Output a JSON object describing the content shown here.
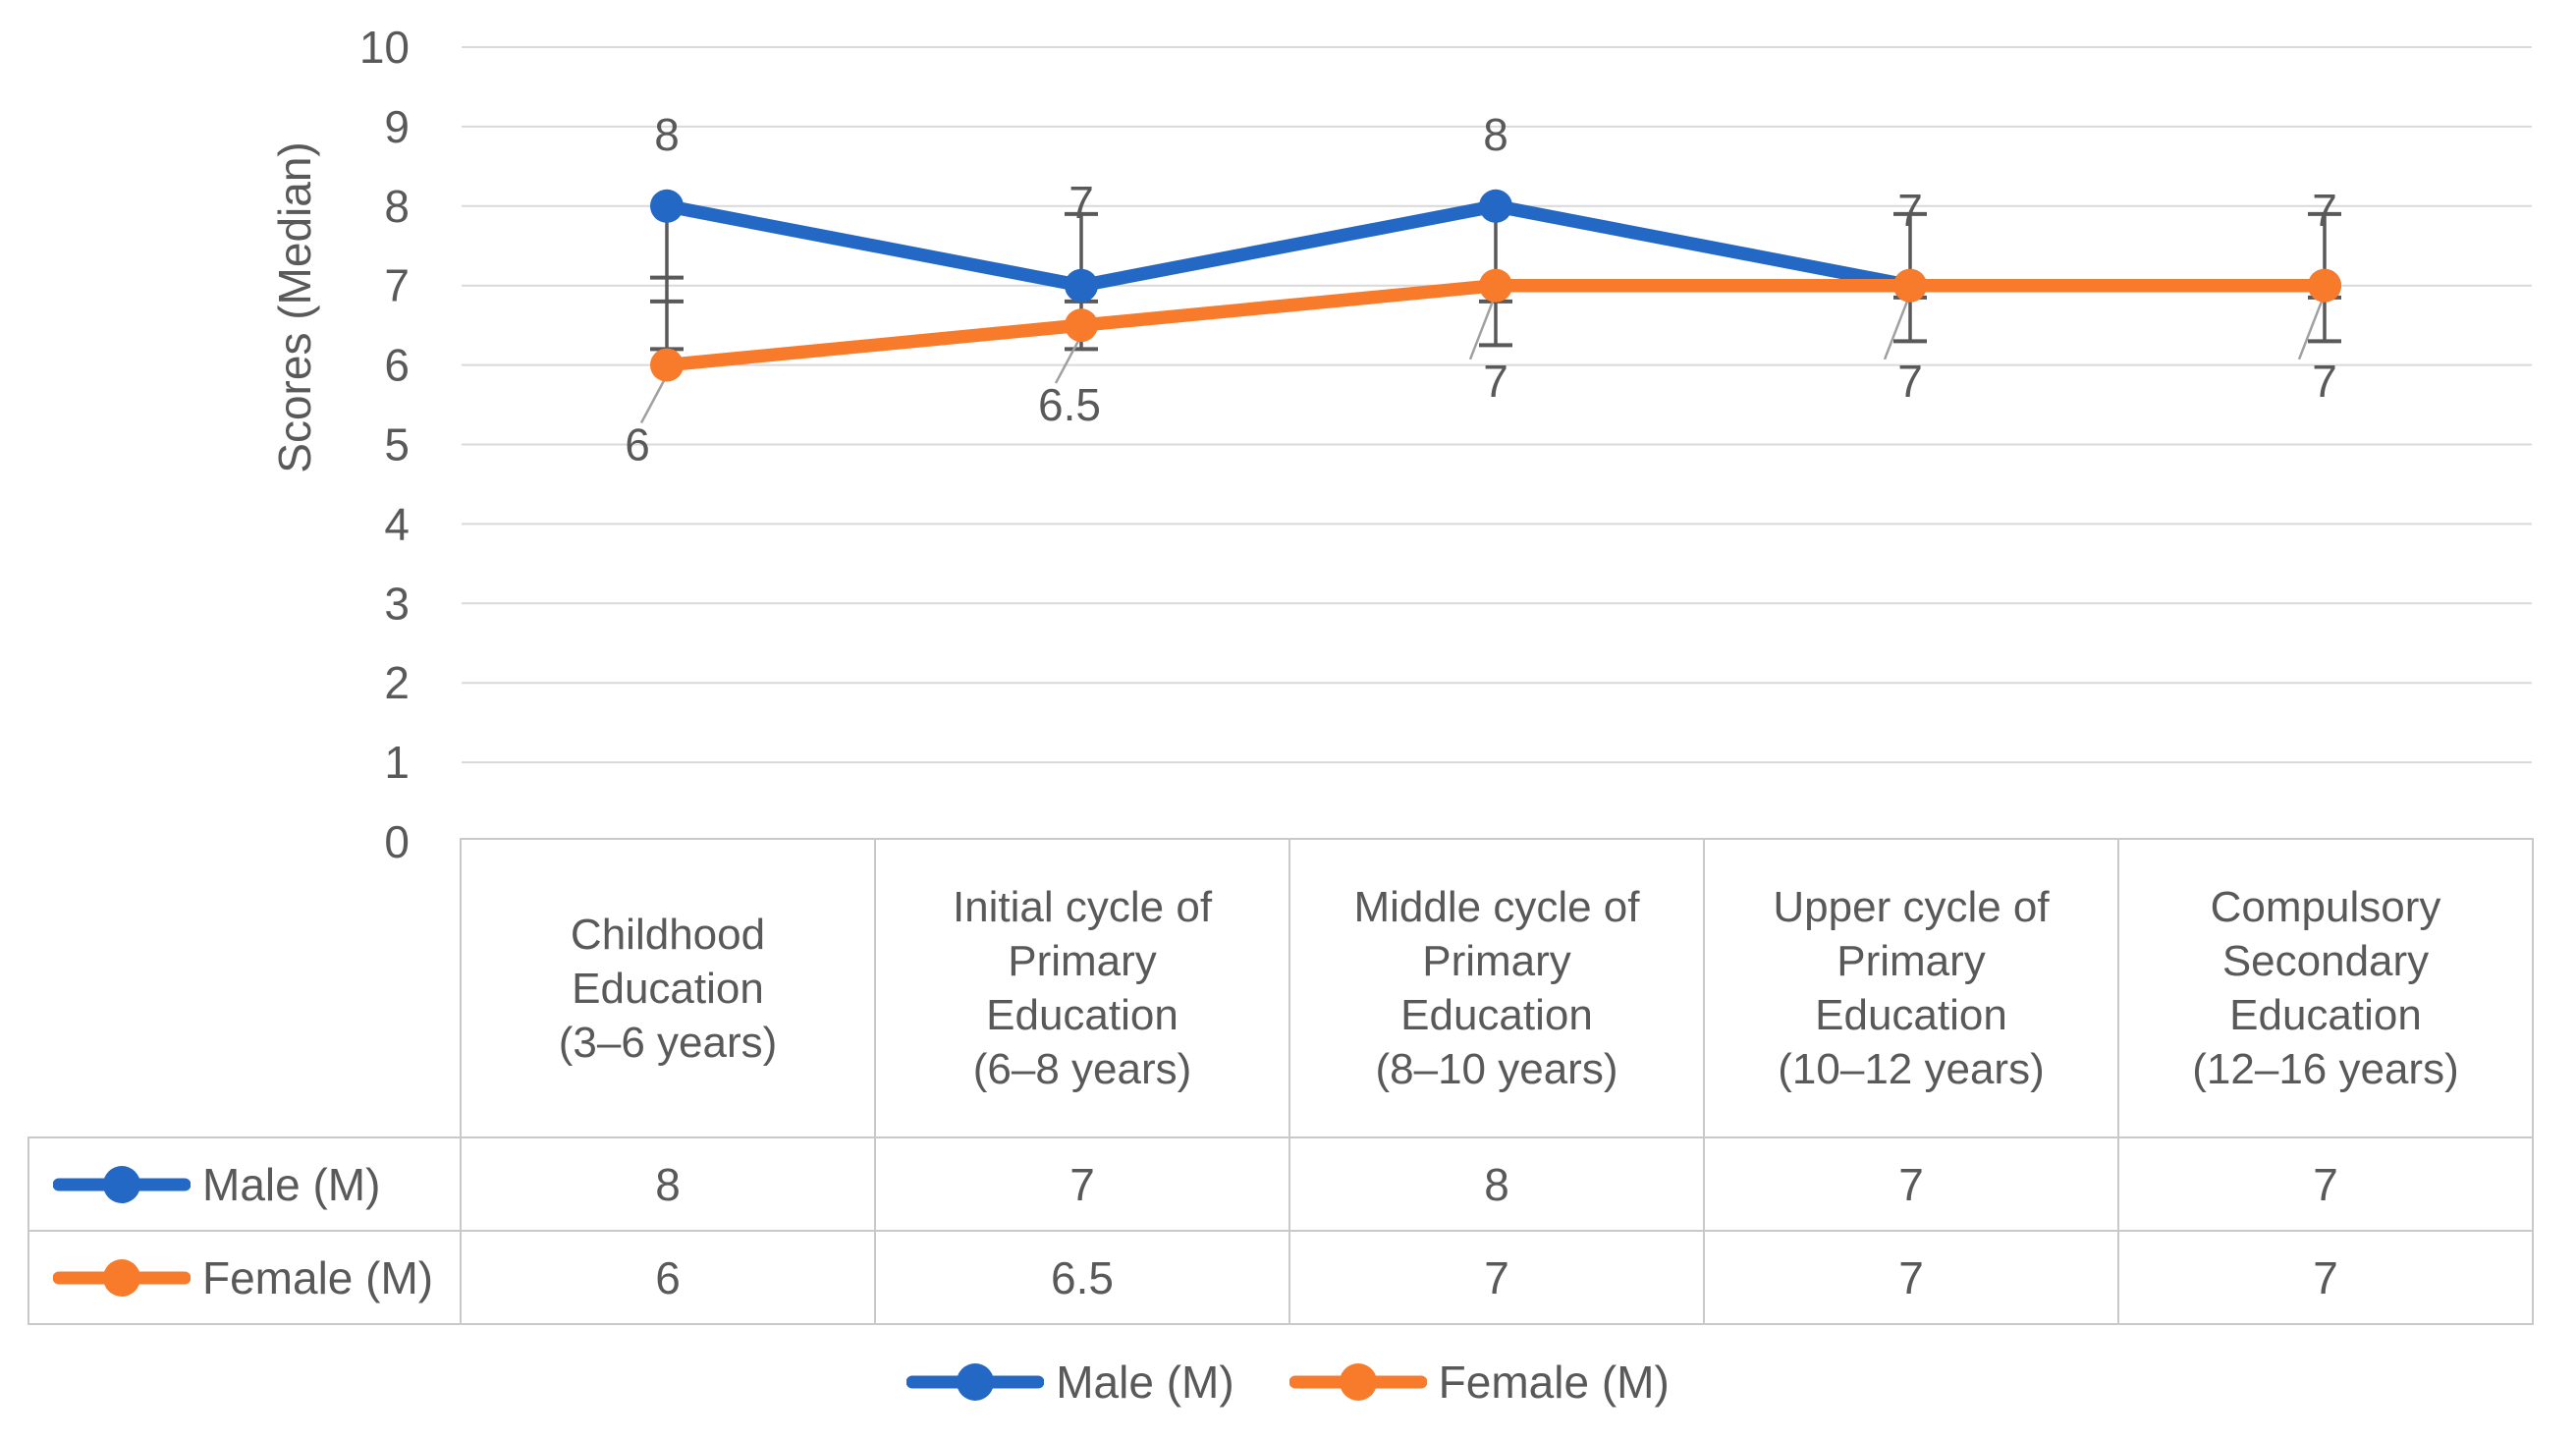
{
  "figure": {
    "background": "#ffffff"
  },
  "chart_data": {
    "type": "line",
    "title": "",
    "xlabel": "",
    "ylabel": "Scores (Median)",
    "ylim": [
      0,
      10
    ],
    "yticks": [
      0,
      1,
      2,
      3,
      4,
      5,
      6,
      7,
      8,
      9,
      10
    ],
    "grid": true,
    "legend_position": "bottom",
    "categories": [
      "Childhood Education (3–6 years)",
      "Initial cycle of Primary Education (6–8 years)",
      "Middle cycle of Primary Education (8–10 years)",
      "Upper cycle of Primary Education (10–12 years)",
      "Compulsory Secondary Education (12–16 years)"
    ],
    "categories_wrapped": [
      "Childhood\nEducation\n(3–6 years)",
      "Initial cycle of\nPrimary\nEducation\n(6–8 years)",
      "Middle cycle of\nPrimary\nEducation\n(8–10 years)",
      "Upper cycle of\nPrimary\nEducation\n(10–12 years)",
      "Compulsory\nSecondary\nEducation\n(12–16 years)"
    ],
    "series": [
      {
        "name": "Male (M)",
        "color": "#2368C4",
        "values": [
          8,
          7,
          8,
          7,
          7
        ],
        "data_labels": [
          "8",
          "7",
          "8",
          "7",
          "7"
        ],
        "data_label_y": [
          8.9,
          8.05,
          8.9,
          7.95,
          7.95
        ]
      },
      {
        "name": "Female (M)",
        "color": "#F87B2C",
        "values": [
          6,
          6.5,
          7,
          7,
          7
        ],
        "data_labels": [
          "6",
          "6.5",
          "7",
          "7",
          "7"
        ],
        "data_label_y": [
          5.0,
          5.5,
          5.8,
          5.8,
          5.8
        ]
      }
    ],
    "error_bars": [
      {
        "top": 8.0,
        "bottom": 6.2,
        "caps": [
          7.1,
          6.8,
          6.2
        ]
      },
      {
        "top": 7.9,
        "bottom": 6.2,
        "caps": [
          7.9,
          6.8,
          6.2
        ]
      },
      {
        "top": 8.0,
        "bottom": 6.25,
        "caps": [
          6.8,
          6.25
        ]
      },
      {
        "top": 7.9,
        "bottom": 6.3,
        "caps": [
          7.9,
          6.85,
          6.3
        ]
      },
      {
        "top": 7.9,
        "bottom": 6.3,
        "caps": [
          7.9,
          6.85,
          6.3
        ]
      }
    ]
  },
  "colors": {
    "male": "#2368C4",
    "female": "#F87B2C",
    "axis_text": "#595959",
    "grid_line": "#D9D9D9",
    "error_bar": "#595959",
    "table_border": "#C9C9C9",
    "leader_line": "#A0A0A0"
  }
}
